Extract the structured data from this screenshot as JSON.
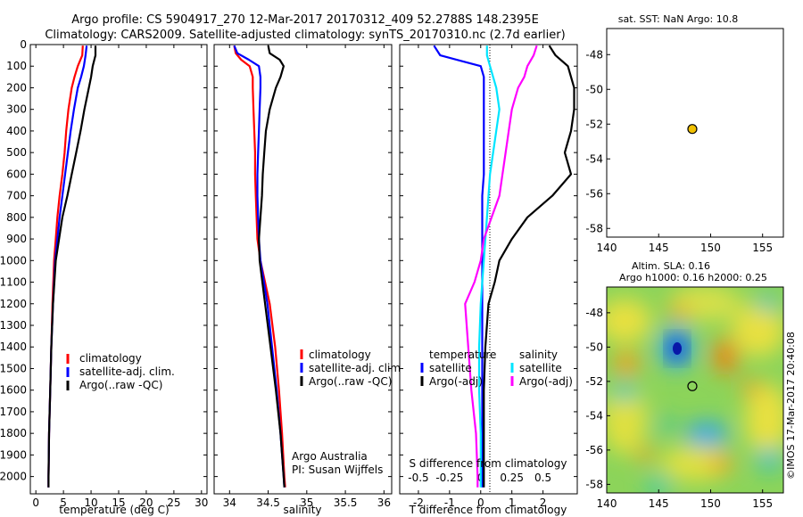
{
  "header": {
    "title_line1": "Argo profile: CS 5904917_270 12-Mar-2017 20170312_409 52.2788S 148.2395E",
    "title_line2": "Climatology: CARS2009. Satellite-adjusted climatology: synTS_20170310.nc (2.7d earlier)"
  },
  "colors": {
    "climatology": "#ff0000",
    "satellite": "#0000ff",
    "argo": "#000000",
    "salinity_satellite": "#00e5ff",
    "salinity_argo": "#ff00ff",
    "marker": "#f0c000"
  },
  "chart_data": [
    {
      "type": "line",
      "id": "temperature",
      "xlabel": "temperature (deg C)",
      "ylabel": "",
      "xlim": [
        -1,
        31
      ],
      "ylim": [
        2080,
        0
      ],
      "xticks": [
        "0",
        "5",
        "10",
        "15",
        "20",
        "25",
        "30"
      ],
      "yticks": [
        "0",
        "100",
        "200",
        "300",
        "400",
        "500",
        "600",
        "700",
        "800",
        "900",
        "1000",
        "1100",
        "1200",
        "1300",
        "1400",
        "1500",
        "1600",
        "1700",
        "1800",
        "1900",
        "2000"
      ],
      "legend": [
        "climatology",
        "satellite-adj. clim.",
        "Argo(..raw -QC)"
      ],
      "depth": [
        5,
        50,
        100,
        150,
        200,
        300,
        400,
        500,
        600,
        700,
        800,
        900,
        1000,
        1200,
        1400,
        1600,
        1800,
        2000,
        2050
      ],
      "series": [
        {
          "name": "climatology",
          "color": "red",
          "values": [
            8.5,
            8.4,
            7.6,
            7.0,
            6.5,
            5.9,
            5.5,
            5.2,
            4.8,
            4.3,
            3.9,
            3.6,
            3.3,
            3.0,
            2.8,
            2.6,
            2.4,
            2.3,
            2.3
          ]
        },
        {
          "name": "satellite-adj. clim.",
          "color": "blue",
          "values": [
            9.2,
            9.0,
            8.7,
            8.2,
            7.6,
            6.9,
            6.3,
            5.8,
            5.3,
            4.8,
            4.3,
            3.9,
            3.5,
            3.1,
            2.8,
            2.6,
            2.4,
            2.3,
            2.3
          ]
        },
        {
          "name": "Argo(..raw -QC)",
          "color": "black",
          "values": [
            10.8,
            10.8,
            10.3,
            10.0,
            9.6,
            8.8,
            8.1,
            7.3,
            6.5,
            5.7,
            4.8,
            4.2,
            3.6,
            3.1,
            2.8,
            2.6,
            2.4,
            2.3,
            2.3
          ]
        }
      ]
    },
    {
      "type": "line",
      "id": "salinity",
      "xlabel": "salinity",
      "ylabel": "",
      "xlim": [
        33.8,
        36.1
      ],
      "ylim": [
        2080,
        0
      ],
      "xticks": [
        "34",
        "34.5",
        "35",
        "35.5",
        "36"
      ],
      "legend": [
        "climatology",
        "satellite-adj. clim.",
        "Argo(..raw -QC)"
      ],
      "annotation": [
        "Argo Australia",
        "PI: Susan Wijffels"
      ],
      "depth": [
        5,
        40,
        70,
        100,
        150,
        200,
        300,
        400,
        500,
        600,
        700,
        800,
        900,
        1000,
        1200,
        1400,
        1600,
        1800,
        2000,
        2050
      ],
      "series": [
        {
          "name": "climatology",
          "color": "red",
          "values": [
            34.06,
            34.08,
            34.15,
            34.26,
            34.3,
            34.3,
            34.31,
            34.32,
            34.33,
            34.33,
            34.34,
            34.35,
            34.36,
            34.4,
            34.52,
            34.59,
            34.64,
            34.68,
            34.71,
            34.72
          ]
        },
        {
          "name": "satellite-adj. clim.",
          "color": "blue",
          "values": [
            34.06,
            34.1,
            34.25,
            34.38,
            34.4,
            34.4,
            34.39,
            34.38,
            34.37,
            34.36,
            34.36,
            34.37,
            34.38,
            34.4,
            34.49,
            34.55,
            34.61,
            34.66,
            34.7,
            34.71
          ]
        },
        {
          "name": "Argo(..raw -QC)",
          "color": "black",
          "values": [
            34.5,
            34.52,
            34.65,
            34.7,
            34.66,
            34.6,
            34.52,
            34.47,
            34.45,
            34.43,
            34.42,
            34.4,
            34.38,
            34.39,
            34.46,
            34.53,
            34.6,
            34.66,
            34.7,
            34.71
          ]
        }
      ]
    },
    {
      "type": "line",
      "id": "difference",
      "xlabel": "T difference from climatology",
      "xlabel2": "S difference from climatology",
      "xlim": [
        -2.6,
        3.1
      ],
      "xticks": [
        "-2",
        "-1",
        "0",
        "1",
        "2"
      ],
      "xticks_top": [
        "-0.5",
        "-0.25",
        "0",
        "0.25",
        "0.5"
      ],
      "ylim": [
        2080,
        0
      ],
      "legend": [
        "temperature",
        "satellite",
        "Argo(-adj)",
        "salinity",
        "satellite",
        "Argo(-adj)"
      ],
      "depth": [
        5,
        50,
        100,
        150,
        200,
        300,
        400,
        500,
        600,
        700,
        800,
        900,
        1000,
        1100,
        1200,
        1400,
        1600,
        1800,
        2000,
        2050
      ],
      "series": [
        {
          "name": "T satellite",
          "color": "blue",
          "values": [
            -1.5,
            -1.3,
            0.0,
            0.1,
            0.1,
            0.1,
            0.1,
            0.1,
            0.1,
            0.05,
            0.05,
            0.05,
            0.05,
            0.05,
            0.05,
            0.05,
            0.05,
            0.05,
            0.05,
            0.05
          ]
        },
        {
          "name": "T Argo(-adj)",
          "color": "black",
          "values": [
            2.2,
            2.4,
            2.8,
            2.9,
            3.0,
            3.0,
            2.9,
            2.7,
            2.9,
            2.3,
            1.5,
            1.0,
            0.6,
            0.45,
            0.25,
            0.15,
            0.1,
            0.1,
            0.1,
            0.1
          ]
        },
        {
          "name": "S satellite",
          "color": "cyan",
          "values": [
            0.2,
            0.2,
            0.3,
            0.4,
            0.5,
            0.6,
            0.5,
            0.4,
            0.3,
            0.25,
            0.2,
            0.15,
            0.1,
            0.05,
            0.0,
            -0.05,
            -0.05,
            0.0,
            0.0,
            0.0
          ]
        },
        {
          "name": "S Argo(-adj)",
          "color": "magenta",
          "values": [
            1.8,
            1.7,
            1.5,
            1.4,
            1.2,
            1.0,
            0.9,
            0.8,
            0.7,
            0.6,
            0.35,
            0.1,
            0.0,
            -0.2,
            -0.5,
            -0.4,
            -0.3,
            -0.15,
            -0.1,
            -0.1
          ]
        }
      ]
    },
    {
      "type": "scatter",
      "id": "map_sst",
      "title": "sat. SST: NaN Argo: 10.8",
      "xlim": [
        140,
        157
      ],
      "ylim": [
        -58.5,
        -46.5
      ],
      "xticks": [
        "140",
        "145",
        "150",
        "155"
      ],
      "yticks": [
        "-48",
        "-50",
        "-52",
        "-54",
        "-56",
        "-58"
      ],
      "points": [
        {
          "x": 148.24,
          "y": -52.28
        }
      ]
    },
    {
      "type": "heatmap",
      "id": "map_sla",
      "title_line1": "Altim. SLA: 0.16",
      "title_line2": "Argo h1000: 0.16 h2000: 0.25",
      "xlim": [
        140,
        157
      ],
      "ylim": [
        -58.5,
        -46.5
      ],
      "xticks": [
        "140",
        "145",
        "150",
        "155"
      ],
      "yticks": [
        "-48",
        "-50",
        "-52",
        "-54",
        "-56",
        "-58"
      ],
      "points": [
        {
          "x": 148.24,
          "y": -52.28
        }
      ]
    }
  ],
  "footer": {
    "credit": "©IMOS 17-Mar-2017 20:40:08"
  }
}
